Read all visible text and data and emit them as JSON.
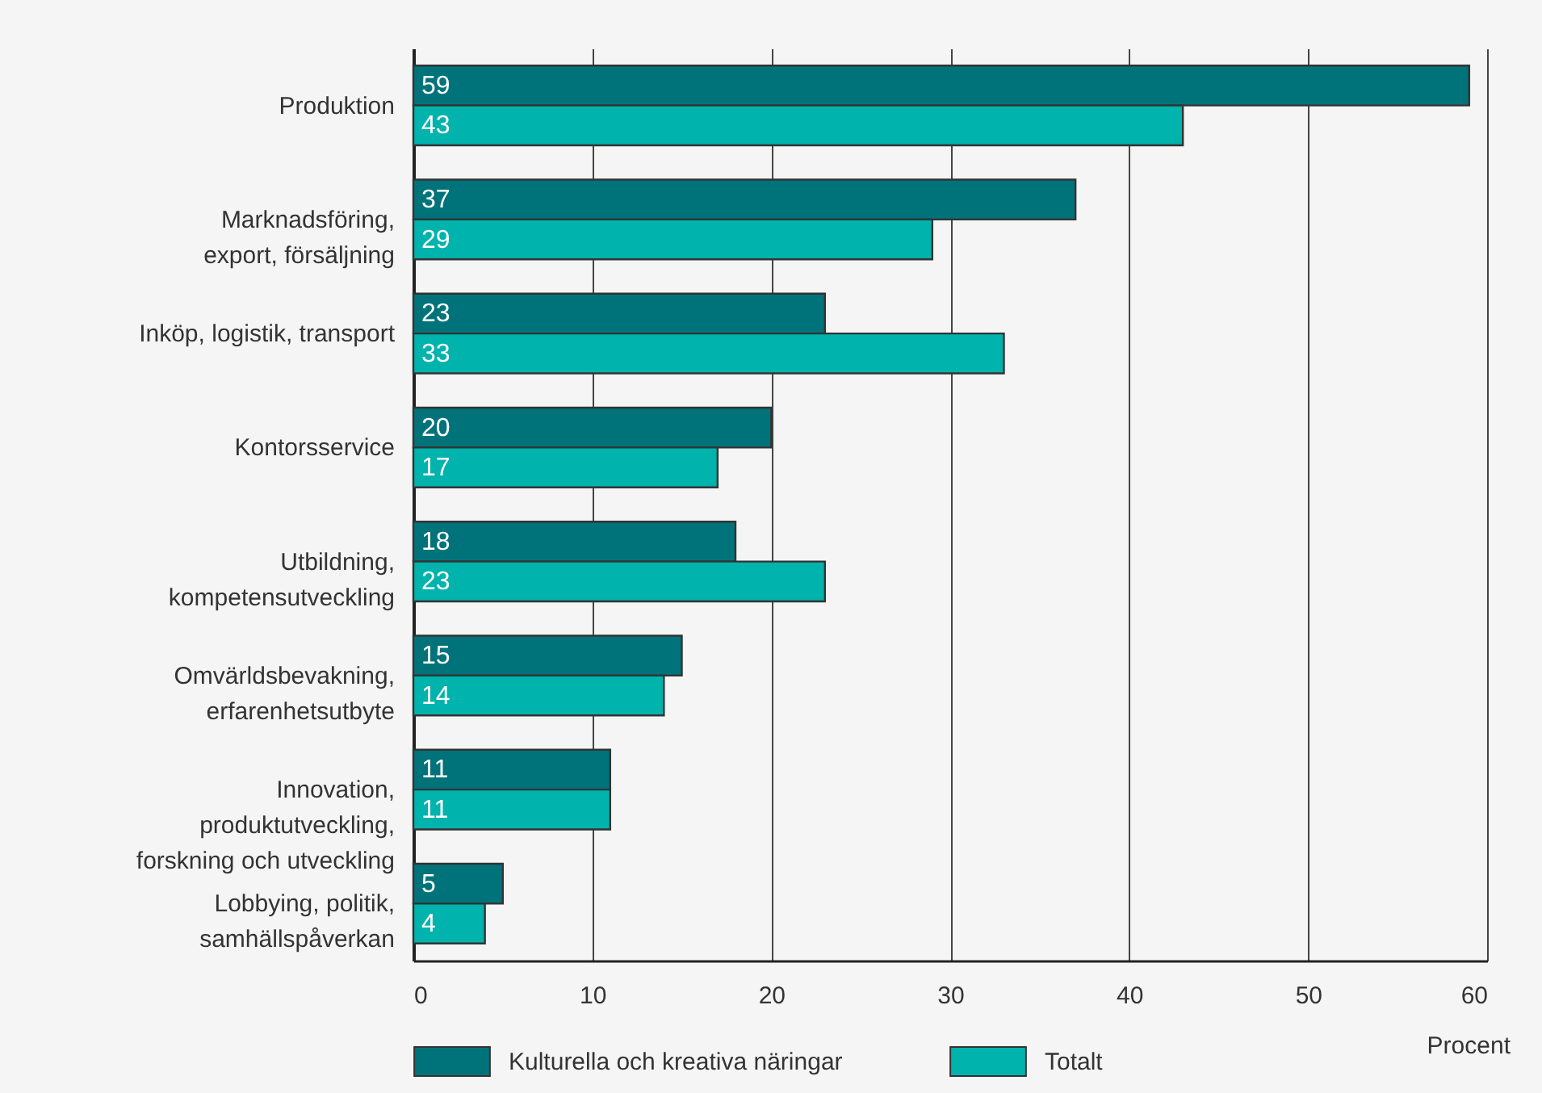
{
  "chart_data": {
    "type": "bar",
    "orientation": "horizontal",
    "categories": [
      "Produktion",
      "Marknadsföring,\nexport, försäljning",
      "Inköp, logistik, transport",
      "Kontorsservice",
      "Utbildning,\nkompetensutveckling",
      "Omvärldsbevakning,\nerfarenhetsutbyte",
      "Innovation,\nproduktutveckling,\nforskning och utveckling",
      "Lobbying, politik,\nsamhällspåverkan"
    ],
    "series": [
      {
        "name": "Kulturella och kreativa näringar",
        "color": "#00737a",
        "values": [
          59,
          37,
          23,
          20,
          18,
          15,
          11,
          5
        ]
      },
      {
        "name": "Totalt",
        "color": "#00b3ad",
        "values": [
          43,
          29,
          33,
          17,
          23,
          14,
          11,
          4
        ]
      }
    ],
    "xlabel": "Procent",
    "xlim": [
      0,
      60
    ],
    "xticks": [
      0,
      10,
      20,
      30,
      40,
      50,
      60
    ],
    "grid": "x",
    "legend": "bottom",
    "data_labels": true
  }
}
